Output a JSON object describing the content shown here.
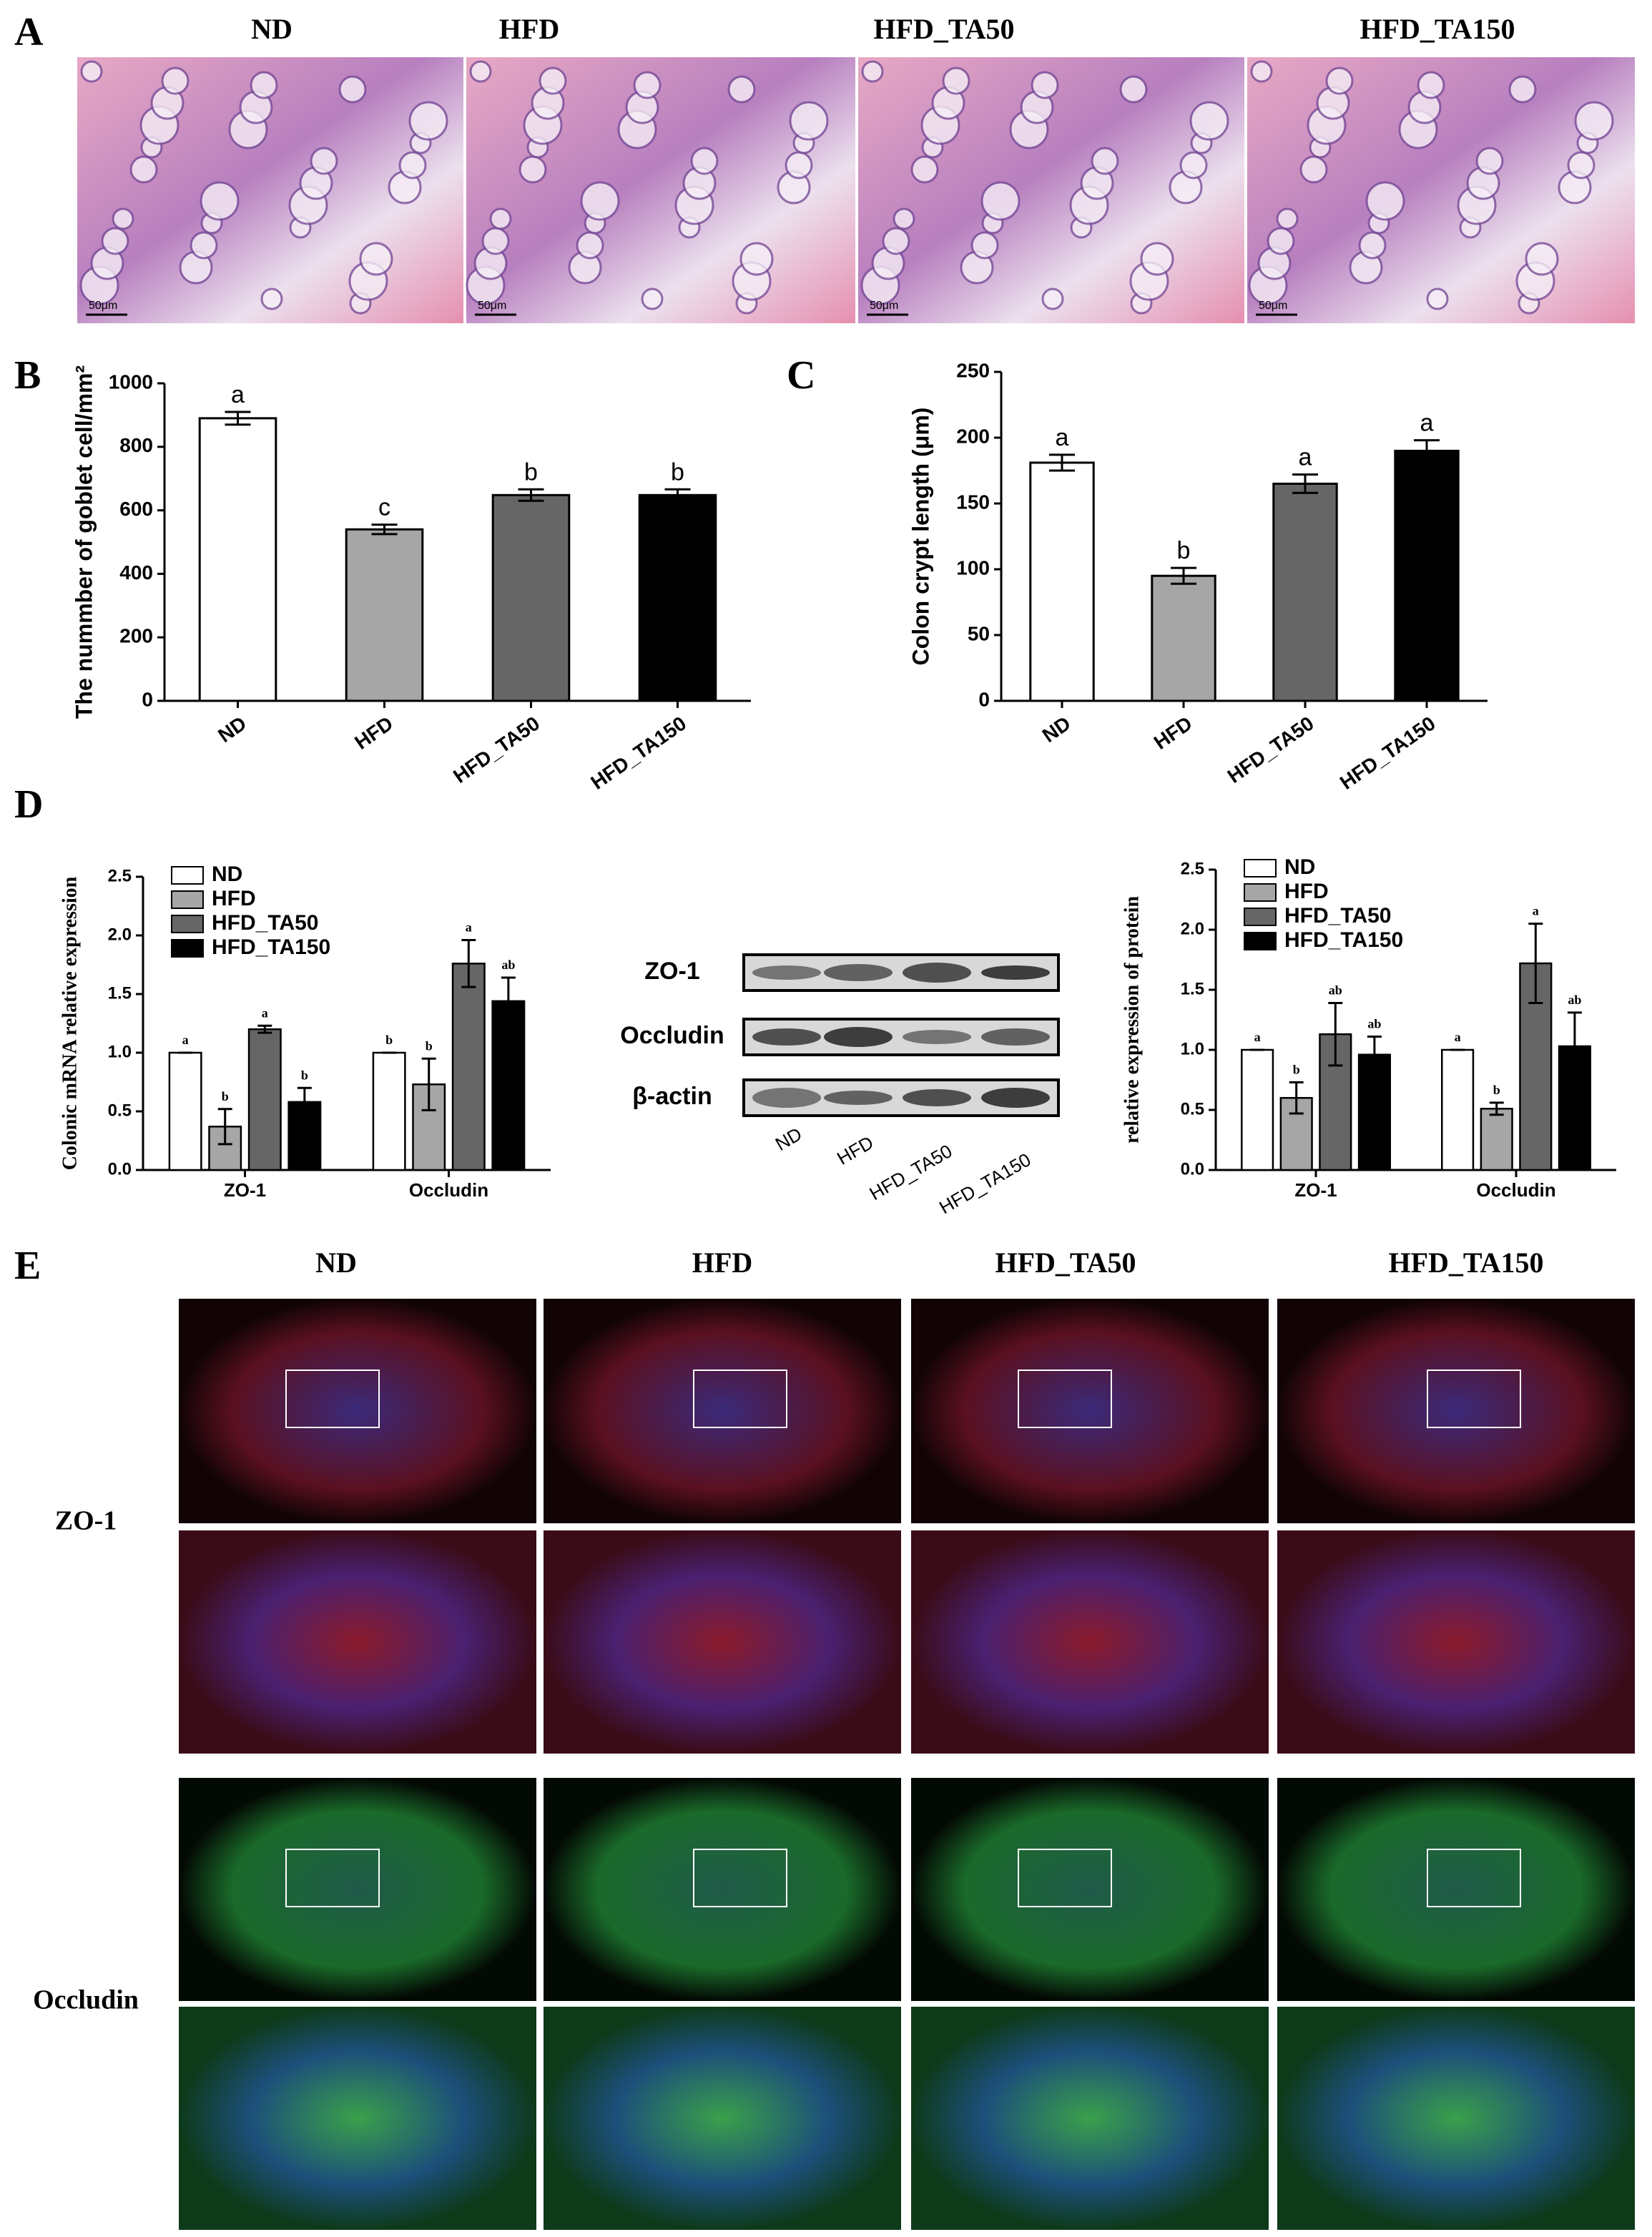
{
  "figure": {
    "panel_labels": [
      "A",
      "B",
      "C",
      "D",
      "E"
    ],
    "he_titles": [
      "ND",
      "HFD",
      "HFD_TA50",
      "HFD_TA150"
    ],
    "scale_bar": "50μm",
    "blot": {
      "bands": [
        "ZO-1",
        "Occludin",
        "β-actin"
      ],
      "lanes": [
        "ND",
        "HFD",
        "HFD_TA50",
        "HFD_TA150"
      ]
    },
    "if_titles": [
      "ND",
      "HFD",
      "HFD_TA50",
      "HFD_TA150"
    ],
    "if_rows": [
      "ZO-1",
      "Occludin"
    ]
  },
  "chart_data": [
    {
      "type": "bar",
      "ylabel": "The nummber of goblet cell/mm²",
      "categories": [
        "ND",
        "HFD",
        "HFD_TA50",
        "HFD_TA150"
      ],
      "values": [
        890,
        540,
        648,
        648
      ],
      "errors": [
        20,
        15,
        18,
        18
      ],
      "letters": [
        "a",
        "c",
        "b",
        "b"
      ],
      "colors": [
        "#ffffff",
        "#a6a6a6",
        "#666666",
        "#000000"
      ],
      "ylim": [
        0,
        1000
      ],
      "yticks": [
        0,
        200,
        400,
        600,
        800,
        1000
      ]
    },
    {
      "type": "bar",
      "ylabel": "Colon crypt length (μm)",
      "categories": [
        "ND",
        "HFD",
        "HFD_TA50",
        "HFD_TA150"
      ],
      "values": [
        181,
        95,
        165,
        190
      ],
      "errors": [
        6,
        6,
        7,
        8
      ],
      "letters": [
        "a",
        "b",
        "a",
        "a"
      ],
      "colors": [
        "#ffffff",
        "#a6a6a6",
        "#666666",
        "#000000"
      ],
      "ylim": [
        0,
        250
      ],
      "yticks": [
        0,
        50,
        100,
        150,
        200,
        250
      ]
    },
    {
      "type": "grouped-bar",
      "ylabel": "Colonic mRNA relative expression",
      "categories": [
        "ZO-1",
        "Occludin"
      ],
      "series": [
        {
          "name": "ND",
          "color": "#ffffff",
          "values": [
            1.0,
            1.0
          ],
          "errors": [
            0,
            0
          ],
          "letters": [
            "a",
            "b"
          ]
        },
        {
          "name": "HFD",
          "color": "#a6a6a6",
          "values": [
            0.37,
            0.73
          ],
          "errors": [
            0.15,
            0.22
          ],
          "letters": [
            "b",
            "b"
          ]
        },
        {
          "name": "HFD_TA50",
          "color": "#666666",
          "values": [
            1.2,
            1.76
          ],
          "errors": [
            0.03,
            0.2
          ],
          "letters": [
            "a",
            "a"
          ]
        },
        {
          "name": "HFD_TA150",
          "color": "#000000",
          "values": [
            0.58,
            1.44
          ],
          "errors": [
            0.12,
            0.2
          ],
          "letters": [
            "b",
            "ab"
          ]
        }
      ],
      "ylim": [
        0,
        2.5
      ],
      "yticks": [
        {
          "value": 0,
          "label": "0.0"
        },
        0.5,
        {
          "value": 1,
          "label": "1.0"
        },
        1.5,
        {
          "value": 2,
          "label": "2.0"
        },
        2.5
      ],
      "legend": "upper-left"
    },
    {
      "type": "grouped-bar",
      "ylabel": "relative expression of protein",
      "categories": [
        "ZO-1",
        "Occludin"
      ],
      "series": [
        {
          "name": "ND",
          "color": "#ffffff",
          "values": [
            1.0,
            1.0
          ],
          "errors": [
            0,
            0
          ],
          "letters": [
            "a",
            "a"
          ]
        },
        {
          "name": "HFD",
          "color": "#a6a6a6",
          "values": [
            0.6,
            0.51
          ],
          "errors": [
            0.13,
            0.05
          ],
          "letters": [
            "b",
            "b"
          ]
        },
        {
          "name": "HFD_TA50",
          "color": "#666666",
          "values": [
            1.13,
            1.72
          ],
          "errors": [
            0.26,
            0.33
          ],
          "letters": [
            "ab",
            "a"
          ]
        },
        {
          "name": "HFD_TA150",
          "color": "#000000",
          "values": [
            0.96,
            1.03
          ],
          "errors": [
            0.15,
            0.28
          ],
          "letters": [
            "ab",
            "ab"
          ]
        }
      ],
      "ylim": [
        0,
        2.5
      ],
      "yticks": [
        {
          "value": 0,
          "label": "0.0"
        },
        0.5,
        {
          "value": 1,
          "label": "1.0"
        },
        1.5,
        {
          "value": 2,
          "label": "2.0"
        },
        2.5
      ],
      "legend": "upper-left"
    }
  ]
}
